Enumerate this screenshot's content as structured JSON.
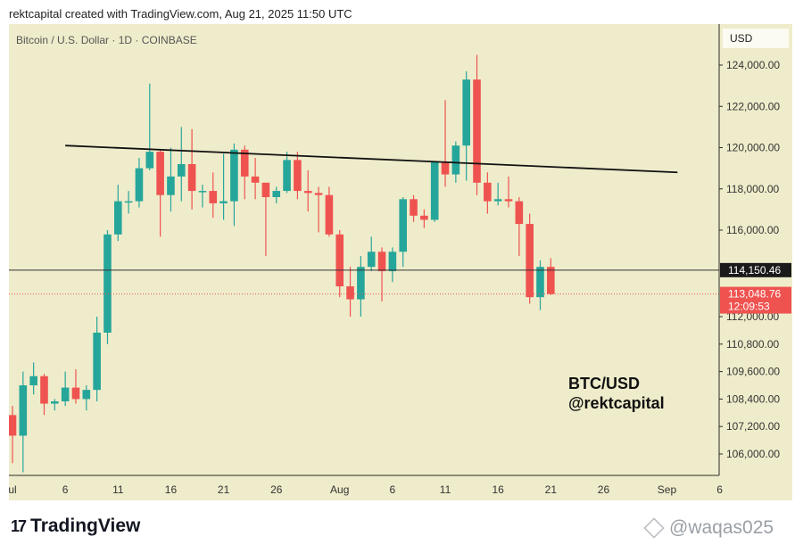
{
  "header": {
    "text": "rektcapital created with TradingView.com, Aug 21, 2025 11:50 UTC"
  },
  "symbol_label": "Bitcoin / U.S. Dollar · 1D · COINBASE",
  "currency": "USD",
  "annotation": {
    "line1": "BTC/USD",
    "line2": "@rektcapital"
  },
  "footer": {
    "logo_text": "TradingView",
    "logo_mark": "17"
  },
  "watermark": {
    "text": "@waqas025"
  },
  "colors": {
    "background": "#efeccb",
    "up": "#26a69a",
    "down": "#ef5350",
    "trendline": "#111111",
    "price_line": "#333333",
    "current_price_bg": "#1a1a1a",
    "last_close_bg": "#ef5350"
  },
  "chart_data": {
    "type": "candlestick",
    "y_scale": "piecewise-linear",
    "y_ticks": [
      {
        "label": "124,000.00",
        "value": 124000
      },
      {
        "label": "122,000.00",
        "value": 122000
      },
      {
        "label": "120,000.00",
        "value": 120000
      },
      {
        "label": "118,000.00",
        "value": 118000
      },
      {
        "label": "116,000.00",
        "value": 116000
      },
      {
        "label": "112,000.00",
        "value": 112000
      },
      {
        "label": "110,800.00",
        "value": 110800
      },
      {
        "label": "109,600.00",
        "value": 109600
      },
      {
        "label": "108,400.00",
        "value": 108400
      },
      {
        "label": "107,200.00",
        "value": 107200
      },
      {
        "label": "106,000.00",
        "value": 106000
      }
    ],
    "x_ticks": [
      {
        "label": "ul",
        "date": "2025-07-01"
      },
      {
        "label": "6",
        "date": "2025-07-06"
      },
      {
        "label": "11",
        "date": "2025-07-11"
      },
      {
        "label": "16",
        "date": "2025-07-16"
      },
      {
        "label": "21",
        "date": "2025-07-21"
      },
      {
        "label": "26",
        "date": "2025-07-26"
      },
      {
        "label": "Aug",
        "date": "2025-08-01"
      },
      {
        "label": "6",
        "date": "2025-08-06"
      },
      {
        "label": "11",
        "date": "2025-08-11"
      },
      {
        "label": "16",
        "date": "2025-08-16"
      },
      {
        "label": "21",
        "date": "2025-08-21"
      },
      {
        "label": "26",
        "date": "2025-08-26"
      },
      {
        "label": "Sep",
        "date": "2025-09-01"
      },
      {
        "label": "6",
        "date": "2025-09-06"
      }
    ],
    "candles": [
      {
        "date": "2025-07-01",
        "open": 107700,
        "high": 108100,
        "low": 105600,
        "close": 106800
      },
      {
        "date": "2025-07-02",
        "open": 106800,
        "high": 109600,
        "low": 105200,
        "close": 109000
      },
      {
        "date": "2025-07-03",
        "open": 109000,
        "high": 110000,
        "low": 108600,
        "close": 109400
      },
      {
        "date": "2025-07-04",
        "open": 109400,
        "high": 109500,
        "low": 107700,
        "close": 108200
      },
      {
        "date": "2025-07-05",
        "open": 108200,
        "high": 108400,
        "low": 107900,
        "close": 108300
      },
      {
        "date": "2025-07-06",
        "open": 108300,
        "high": 109600,
        "low": 108100,
        "close": 108900
      },
      {
        "date": "2025-07-07",
        "open": 108900,
        "high": 109700,
        "low": 108200,
        "close": 108400
      },
      {
        "date": "2025-07-08",
        "open": 108400,
        "high": 109000,
        "low": 107900,
        "close": 108800
      },
      {
        "date": "2025-07-09",
        "open": 108800,
        "high": 112000,
        "low": 108300,
        "close": 111300
      },
      {
        "date": "2025-07-10",
        "open": 111300,
        "high": 116000,
        "low": 110800,
        "close": 115800
      },
      {
        "date": "2025-07-11",
        "open": 115800,
        "high": 118200,
        "low": 115500,
        "close": 117400
      },
      {
        "date": "2025-07-12",
        "open": 117400,
        "high": 117900,
        "low": 116800,
        "close": 117400
      },
      {
        "date": "2025-07-13",
        "open": 117400,
        "high": 119500,
        "low": 117100,
        "close": 119000
      },
      {
        "date": "2025-07-14",
        "open": 119000,
        "high": 123100,
        "low": 118900,
        "close": 119800
      },
      {
        "date": "2025-07-15",
        "open": 119800,
        "high": 119900,
        "low": 115700,
        "close": 117700
      },
      {
        "date": "2025-07-16",
        "open": 117700,
        "high": 120000,
        "low": 116900,
        "close": 118600
      },
      {
        "date": "2025-07-17",
        "open": 118600,
        "high": 121000,
        "low": 117400,
        "close": 119200
      },
      {
        "date": "2025-07-18",
        "open": 119200,
        "high": 120900,
        "low": 117000,
        "close": 117900
      },
      {
        "date": "2025-07-19",
        "open": 117900,
        "high": 118200,
        "low": 117100,
        "close": 117900
      },
      {
        "date": "2025-07-20",
        "open": 117900,
        "high": 118800,
        "low": 116600,
        "close": 117300
      },
      {
        "date": "2025-07-21",
        "open": 117300,
        "high": 119700,
        "low": 116500,
        "close": 117400
      },
      {
        "date": "2025-07-22",
        "open": 117400,
        "high": 120200,
        "low": 116200,
        "close": 119900
      },
      {
        "date": "2025-07-23",
        "open": 119900,
        "high": 120100,
        "low": 117500,
        "close": 118600
      },
      {
        "date": "2025-07-24",
        "open": 118600,
        "high": 119500,
        "low": 117500,
        "close": 118300
      },
      {
        "date": "2025-07-25",
        "open": 118300,
        "high": 118300,
        "low": 114800,
        "close": 117600
      },
      {
        "date": "2025-07-26",
        "open": 117600,
        "high": 118100,
        "low": 117300,
        "close": 117900
      },
      {
        "date": "2025-07-27",
        "open": 117900,
        "high": 119800,
        "low": 117800,
        "close": 119400
      },
      {
        "date": "2025-07-28",
        "open": 119400,
        "high": 119800,
        "low": 117500,
        "close": 117900
      },
      {
        "date": "2025-07-29",
        "open": 117900,
        "high": 118900,
        "low": 116900,
        "close": 117800
      },
      {
        "date": "2025-07-30",
        "open": 117800,
        "high": 118100,
        "low": 115900,
        "close": 117700
      },
      {
        "date": "2025-07-31",
        "open": 117700,
        "high": 118100,
        "low": 115700,
        "close": 115800
      },
      {
        "date": "2025-08-01",
        "open": 115800,
        "high": 116000,
        "low": 112900,
        "close": 113400
      },
      {
        "date": "2025-08-02",
        "open": 113400,
        "high": 114300,
        "low": 112000,
        "close": 112800
      },
      {
        "date": "2025-08-03",
        "open": 112800,
        "high": 114800,
        "low": 112000,
        "close": 114300
      },
      {
        "date": "2025-08-04",
        "open": 114300,
        "high": 115700,
        "low": 114100,
        "close": 115000
      },
      {
        "date": "2025-08-05",
        "open": 115000,
        "high": 115200,
        "low": 112700,
        "close": 114100
      },
      {
        "date": "2025-08-06",
        "open": 114100,
        "high": 115200,
        "low": 113600,
        "close": 115000
      },
      {
        "date": "2025-08-07",
        "open": 115000,
        "high": 117600,
        "low": 114300,
        "close": 117500
      },
      {
        "date": "2025-08-08",
        "open": 117500,
        "high": 117700,
        "low": 116400,
        "close": 116700
      },
      {
        "date": "2025-08-09",
        "open": 116700,
        "high": 117000,
        "low": 116100,
        "close": 116500
      },
      {
        "date": "2025-08-10",
        "open": 116500,
        "high": 119300,
        "low": 116400,
        "close": 119300
      },
      {
        "date": "2025-08-11",
        "open": 119300,
        "high": 122300,
        "low": 118100,
        "close": 118700
      },
      {
        "date": "2025-08-12",
        "open": 118700,
        "high": 120300,
        "low": 118300,
        "close": 120100
      },
      {
        "date": "2025-08-13",
        "open": 120100,
        "high": 123700,
        "low": 118400,
        "close": 123300
      },
      {
        "date": "2025-08-14",
        "open": 123300,
        "high": 124500,
        "low": 117700,
        "close": 118300
      },
      {
        "date": "2025-08-15",
        "open": 118300,
        "high": 118800,
        "low": 116800,
        "close": 117400
      },
      {
        "date": "2025-08-16",
        "open": 117400,
        "high": 118300,
        "low": 117200,
        "close": 117500
      },
      {
        "date": "2025-08-17",
        "open": 117500,
        "high": 118600,
        "low": 117100,
        "close": 117400
      },
      {
        "date": "2025-08-18",
        "open": 117400,
        "high": 117600,
        "low": 114800,
        "close": 116300
      },
      {
        "date": "2025-08-19",
        "open": 116300,
        "high": 116800,
        "low": 112600,
        "close": 112900
      },
      {
        "date": "2025-08-20",
        "open": 112900,
        "high": 114600,
        "low": 112300,
        "close": 114300
      },
      {
        "date": "2025-08-21",
        "open": 114300,
        "high": 114700,
        "low": 113000,
        "close": 113048.76
      }
    ],
    "trendline": [
      {
        "date": "2025-07-06",
        "value": 120100
      },
      {
        "date": "2025-09-02",
        "value": 118800
      }
    ],
    "horizontal_lines": [
      {
        "value": 114150.46,
        "label": "114,150.46",
        "style": "solid"
      },
      {
        "value": 113048.76,
        "label": "113,048.76",
        "sublabel": "12:09:53",
        "style": "dotted"
      }
    ]
  }
}
